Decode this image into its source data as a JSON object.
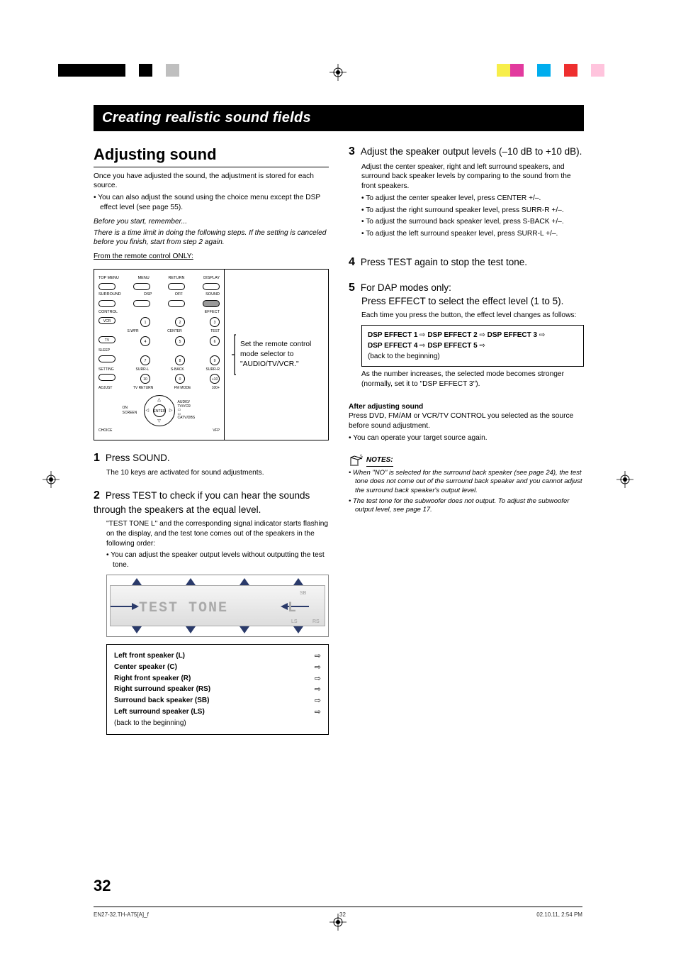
{
  "color_bars": {
    "left": [
      "#000000",
      "#000000",
      "#000000",
      "#000000",
      "#000000",
      "#ffffff",
      "#000000",
      "#ffffff",
      "#bfbfbf",
      "#ffffff"
    ],
    "right": [
      "#ffffff",
      "#f7ee4a",
      "#e23a9e",
      "#ffffff",
      "#00adee",
      "#ffffff",
      "#ee2f2f",
      "#ffffff",
      "#ffc4dd",
      "#ffffff"
    ]
  },
  "title": "Creating realistic sound fields",
  "left": {
    "heading": "Adjusting sound",
    "intro": "Once you have adjusted the sound, the adjustment is stored for each source.",
    "intro_bullet": "You can also adjust the sound using the choice menu except the DSP effect level (see page 55).",
    "before": "Before you start, remember...",
    "time_limit": "There is a time limit in doing the following steps. If the setting is canceled before you finish, start from step 2 again.",
    "from_remote": "From the remote control ONLY:",
    "remote_labels": {
      "r1": [
        "TOP MENU",
        "MENU",
        "RETURN",
        "DISPLAY"
      ],
      "r2": [
        "SURROUND",
        "DSP",
        "OFF",
        "SOUND"
      ],
      "control": "CONTROL",
      "effect": "EFFECT",
      "vcr": "VCR",
      "swfr": "S.WFR",
      "center": "CENTER",
      "test": "TEST",
      "tv": "TV",
      "sleep": "SLEEP",
      "setting": "SETTING",
      "surrl": "SURR-L",
      "sback": "S-BACK",
      "surrr": "SURR-R",
      "adjust": "ADJUST",
      "tvreturn": "TV RETURN",
      "fmmode": "FM MODE",
      "hundred": "100+",
      "onscreen": "ON SCREEN",
      "audio": "AUDIO/ TV/VCR",
      "catv": "CATV/DBS",
      "enter": "ENTER",
      "choice": "CHOICE",
      "vfp": "VFP",
      "nums": [
        "1",
        "2",
        "3",
        "4",
        "5",
        "6",
        "7",
        "8",
        "9",
        "10",
        "0",
        "+10"
      ]
    },
    "remote_right": "Set the remote control mode selector to \"AUDIO/TV/VCR.\"",
    "step1_head": "Press SOUND.",
    "step1_body": "The 10 keys are activated for sound adjustments.",
    "step2_head": "Press TEST to check if you can hear the sounds through the speakers at the equal level.",
    "step2_body1": "\"TEST TONE L\" and the corresponding signal indicator starts flashing on the display, and the test tone comes out of the speakers in the following order:",
    "step2_bullet": "You can adjust the speaker output levels without outputting the test tone.",
    "display_text": "TEST TONE",
    "display_l": "L",
    "speakers": [
      "Left front speaker (L)",
      "Center speaker (C)",
      "Right front speaker (R)",
      "Right surround speaker (RS)",
      "Surround back speaker (SB)",
      "Left surround speaker (LS)"
    ],
    "speakers_back": "(back to the beginning)"
  },
  "right": {
    "step3_head": "Adjust the speaker output levels (–10 dB to +10 dB).",
    "step3_body": "Adjust the center speaker, right and left surround speakers, and surround back speaker levels by comparing to the sound from the front speakers.",
    "step3_bullets": [
      "To adjust the center speaker level, press CENTER +/–.",
      "To adjust the right surround speaker level, press SURR-R +/–.",
      "To adjust the surround back speaker level, press S-BACK +/–.",
      "To adjust the left surround speaker level, press SURR-L +/–."
    ],
    "step4_head": "Press TEST again to stop the test tone.",
    "step5_head1": "For DAP modes only:",
    "step5_head2": "Press EFFECT to select the effect level (1 to 5).",
    "step5_body": "Each time you press the button, the effect level changes as follows:",
    "dsp": {
      "items": [
        "DSP EFFECT 1",
        "DSP EFFECT 2",
        "DSP EFFECT 3",
        "DSP EFFECT 4",
        "DSP EFFECT 5"
      ],
      "back": "(back to the beginning)",
      "arrow": "⇨"
    },
    "step5_after": "As the number increases, the selected mode becomes stronger (normally, set it to \"DSP EFFECT 3\").",
    "after_head": "After adjusting sound",
    "after_body": "Press DVD, FM/AM or VCR/TV CONTROL you selected as the source before sound adjustment.",
    "after_bullet": "You can operate your target source again.",
    "notes_label": "NOTES:",
    "notes": [
      "When \"NO\" is selected for the surround back speaker (see page 24), the test tone does not come out of the surround back speaker and you cannot adjust the surround back speaker's output level.",
      "The test tone for the subwoofer does not output. To adjust the subwoofer output level, see page 17."
    ]
  },
  "page_num": "32",
  "footer": {
    "file": "EN27-32.TH-A75[A]_f",
    "p": "32",
    "ts": "02.10.11, 2:54 PM"
  },
  "step_nums": {
    "s1": "1",
    "s2": "2",
    "s3": "3",
    "s4": "4",
    "s5": "5"
  }
}
